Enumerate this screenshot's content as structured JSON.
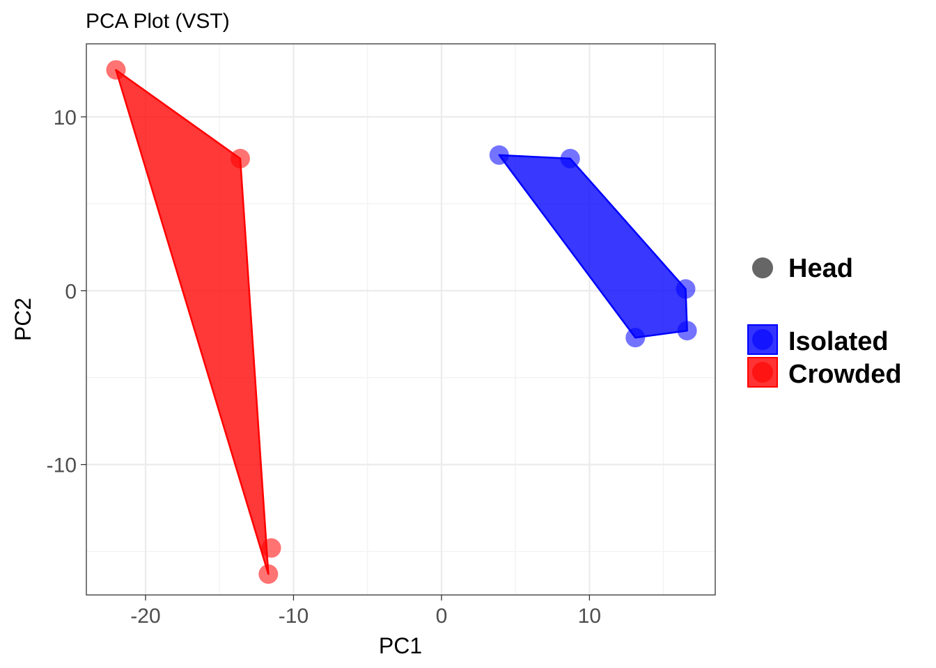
{
  "chart_data": {
    "type": "scatter",
    "title": "PCA Plot (VST)",
    "xlabel": "PC1",
    "ylabel": "PC2",
    "xlim": [
      -24.0,
      18.5
    ],
    "ylim": [
      -17.5,
      14.2
    ],
    "x_ticks": [
      -20,
      -10,
      0,
      10
    ],
    "y_ticks": [
      -10,
      0,
      10
    ],
    "x_tick_labels": [
      "-20",
      "-10",
      "0",
      "10"
    ],
    "y_tick_labels": [
      "-10",
      "0",
      "10"
    ],
    "grid": true,
    "legend_position": "right",
    "shape_legend": {
      "label": "Head",
      "color": "#666666"
    },
    "series": [
      {
        "name": "Isolated",
        "color": "#0000ff",
        "x": [
          3.9,
          8.7,
          16.5,
          13.1,
          16.6
        ],
        "y": [
          7.8,
          7.6,
          0.1,
          -2.7,
          -2.3
        ],
        "hull_order": [
          0,
          1,
          2,
          4,
          3
        ]
      },
      {
        "name": "Crowded",
        "color": "#ff0000",
        "x": [
          -22.0,
          -13.6,
          -11.5,
          -11.7
        ],
        "y": [
          12.7,
          7.6,
          -14.8,
          -16.3
        ],
        "hull_order": [
          0,
          1,
          3
        ]
      }
    ]
  }
}
